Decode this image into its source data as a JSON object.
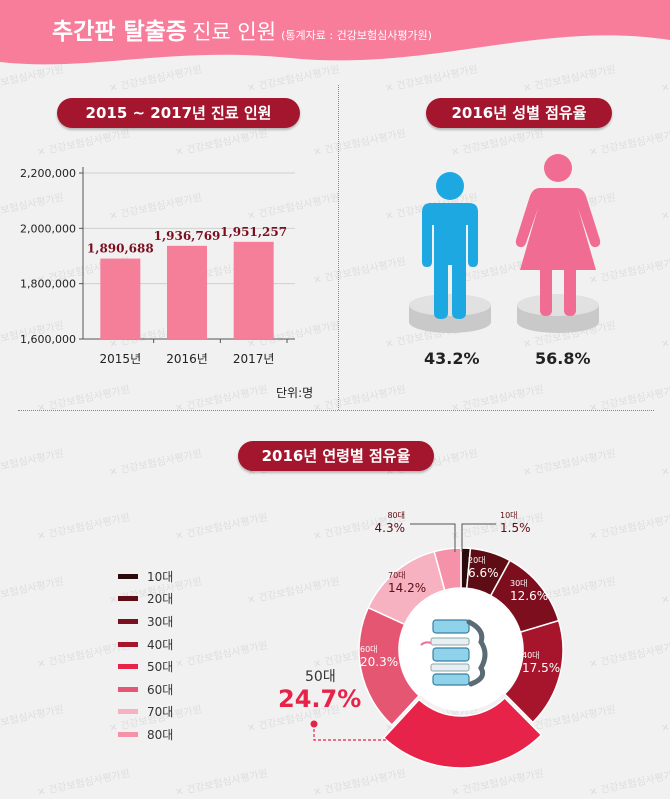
{
  "header": {
    "title_bold": "추간판 탈출증",
    "title_normal": "진료 인원",
    "source": "(통계자료 : 건강보험심사평가원)"
  },
  "watermark": "건강보험심사평가원",
  "colors": {
    "brand": "#a3162e",
    "header": "#f77d9b",
    "bar": "#f57f98",
    "male": "#1ea8e2",
    "female": "#f06c92"
  },
  "bar_section": {
    "title": "2015 ~ 2017년 진료 인원",
    "unit": "단위:명"
  },
  "gender_section": {
    "title": "2016년 성별 점유율",
    "male_icon": "male-person-icon",
    "female_icon": "female-person-icon"
  },
  "age_section": {
    "title": "2016년 연령별 점유율",
    "highlight": {
      "group": "50대",
      "value": "24.7%"
    },
    "center_icon": "spine-icon"
  },
  "chart_data": [
    {
      "type": "bar",
      "title": "2015 ~ 2017년 진료 인원",
      "categories": [
        "2015년",
        "2016년",
        "2017년"
      ],
      "values": [
        1890688,
        1936769,
        1951257
      ],
      "value_labels": [
        "1,890,688",
        "1,936,769",
        "1,951,257"
      ],
      "ylim": [
        1600000,
        2200000
      ],
      "yticks": [
        1600000,
        1800000,
        2000000,
        2200000
      ],
      "ytick_labels": [
        "1,600,000",
        "1,800,000",
        "2,000,000",
        "2,200,000"
      ],
      "grid": true,
      "color": "#f57f98",
      "unit": "단위:명"
    },
    {
      "type": "pie",
      "title": "2016년 성별 점유율",
      "categories": [
        "남성",
        "여성"
      ],
      "values": [
        43.2,
        56.8
      ],
      "labels": [
        "43.2%",
        "56.8%"
      ],
      "colors": [
        "#1ea8e2",
        "#f06c92"
      ]
    },
    {
      "type": "pie",
      "title": "2016년 연령별 점유율",
      "categories": [
        "10대",
        "20대",
        "30대",
        "40대",
        "50대",
        "60대",
        "70대",
        "80대"
      ],
      "values": [
        1.5,
        6.6,
        12.6,
        17.5,
        24.7,
        20.3,
        14.2,
        4.3
      ],
      "labels": [
        "1.5%",
        "6.6%",
        "12.6%",
        "17.5%",
        "24.7%",
        "20.3%",
        "14.2%",
        "4.3%"
      ],
      "colors": [
        "#2a0a0a",
        "#5e0d14",
        "#7d0e1d",
        "#a6152c",
        "#e8234a",
        "#e55673",
        "#f6b2c1",
        "#f591a8"
      ],
      "legend_position": "left"
    }
  ]
}
